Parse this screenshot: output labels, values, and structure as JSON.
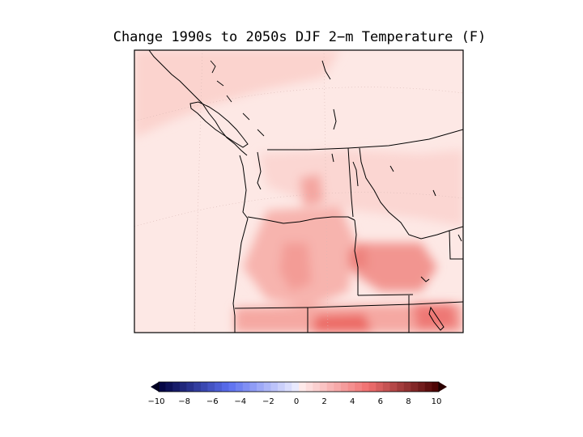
{
  "title": "Change 1990s to 2050s DJF 2−m Temperature (F)",
  "colorbar": {
    "tick_labels": [
      "−10",
      "−8",
      "−6",
      "−4",
      "−2",
      "0",
      "2",
      "4",
      "6",
      "8",
      "10"
    ],
    "min": -10,
    "max": 10,
    "bins": 40
  },
  "colors": {
    "map_background": "#fde6e3",
    "warm_light": "#fbd4cf",
    "warm_mid": "#f7a9a3",
    "warm_strong": "#ef6e6a",
    "warm_max": "#e23a3a",
    "coast_line": "#000000"
  }
}
